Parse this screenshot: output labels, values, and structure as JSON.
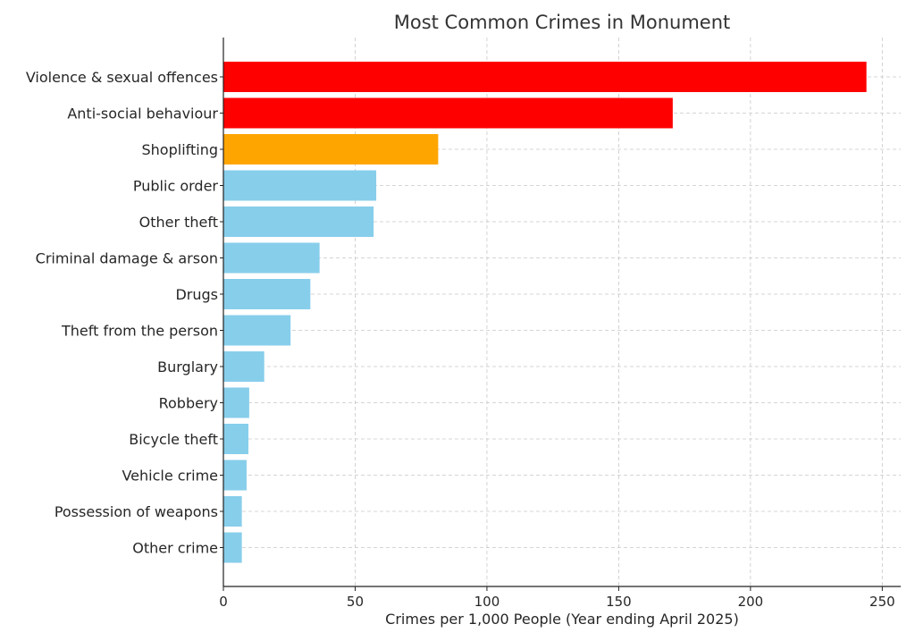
{
  "chart_data": {
    "type": "bar",
    "orientation": "horizontal",
    "title": "Most Common Crimes in Monument",
    "xlabel": "Crimes per 1,000 People (Year ending April 2025)",
    "ylabel": "",
    "xlim": [
      0,
      257
    ],
    "xticks": [
      0,
      50,
      100,
      150,
      200,
      250
    ],
    "grid": true,
    "categories": [
      "Violence & sexual offences",
      "Anti-social behaviour",
      "Shoplifting",
      "Public order",
      "Other theft",
      "Criminal damage & arson",
      "Drugs",
      "Theft from the person",
      "Burglary",
      "Robbery",
      "Bicycle theft",
      "Vehicle crime",
      "Possession of weapons",
      "Other crime"
    ],
    "values": [
      244,
      170.5,
      81.5,
      58,
      57,
      36.5,
      33,
      25.5,
      15.5,
      9.8,
      9.5,
      8.8,
      7,
      7
    ],
    "colors": [
      "#ff0000",
      "#ff0000",
      "#ffa500",
      "#87ceeb",
      "#87ceeb",
      "#87ceeb",
      "#87ceeb",
      "#87ceeb",
      "#87ceeb",
      "#87ceeb",
      "#87ceeb",
      "#87ceeb",
      "#87ceeb",
      "#87ceeb"
    ]
  }
}
